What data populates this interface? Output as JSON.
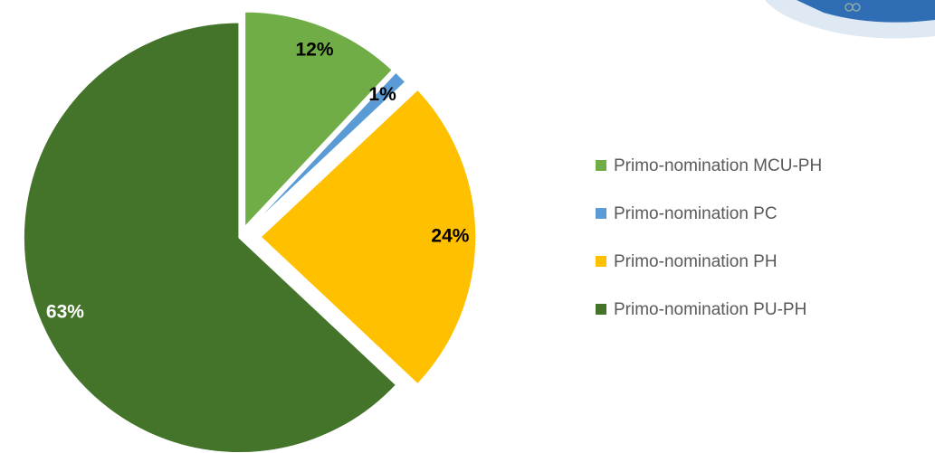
{
  "chart_data": {
    "type": "pie",
    "categories": [
      "Primo-nomination MCU-PH",
      "Primo-nomination PC",
      "Primo-nomination PH",
      "Primo-nomination PU-PH"
    ],
    "values": [
      12,
      1,
      24,
      63
    ],
    "value_labels": [
      "12%",
      "1%",
      "24%",
      "63%"
    ],
    "colors": [
      "#70ad47",
      "#5b9bd5",
      "#ffc000",
      "#44732a"
    ],
    "legend": "right"
  }
}
